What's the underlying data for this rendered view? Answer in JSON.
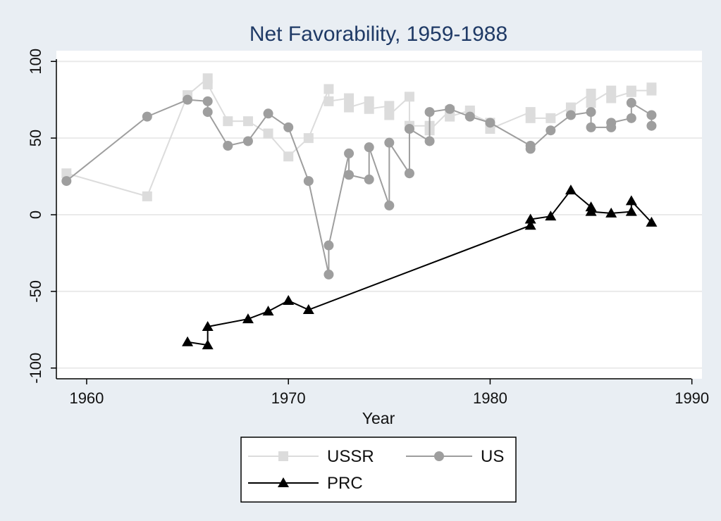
{
  "chart_data": {
    "type": "line",
    "title": "Net Favorability, 1959-1988",
    "xlabel": "Year",
    "ylabel": "",
    "xlim": [
      1958.5,
      1990.5
    ],
    "ylim": [
      -107,
      107
    ],
    "xticks": [
      1960,
      1970,
      1980,
      1990
    ],
    "yticks": [
      100,
      50,
      0,
      -50,
      -100
    ],
    "grid": true,
    "legend_position": "bottom",
    "series": [
      {
        "name": "USSR",
        "color": "#dcdcdc",
        "marker": "square",
        "x": [
          1959,
          1963,
          1965,
          1966,
          1966,
          1967,
          1968,
          1969,
          1970,
          1971,
          1972,
          1972,
          1973,
          1973,
          1974,
          1974,
          1975,
          1975,
          1976,
          1976,
          1977,
          1977,
          1978,
          1978,
          1979,
          1979,
          1980,
          1980,
          1982,
          1982,
          1983,
          1984,
          1985,
          1985,
          1986,
          1986,
          1987,
          1987,
          1988,
          1988
        ],
        "y": [
          27,
          12,
          78,
          89,
          85,
          61,
          61,
          53,
          38,
          50,
          82,
          74,
          76,
          70,
          74,
          69,
          71,
          65,
          77,
          58,
          58,
          55,
          68,
          64,
          68,
          66,
          60,
          56,
          67,
          63,
          63,
          70,
          79,
          73,
          81,
          76,
          80,
          81,
          81,
          83
        ]
      },
      {
        "name": "US",
        "color": "#9e9e9e",
        "marker": "circle",
        "x": [
          1959,
          1963,
          1965,
          1966,
          1966,
          1967,
          1968,
          1969,
          1970,
          1971,
          1972,
          1972,
          1973,
          1973,
          1974,
          1974,
          1975,
          1975,
          1976,
          1976,
          1977,
          1977,
          1978,
          1979,
          1980,
          1982,
          1982,
          1983,
          1984,
          1985,
          1985,
          1986,
          1986,
          1987,
          1987,
          1988,
          1988
        ],
        "y": [
          22,
          64,
          75,
          74,
          67,
          45,
          48,
          66,
          57,
          22,
          -39,
          -20,
          40,
          26,
          23,
          44,
          6,
          47,
          27,
          56,
          48,
          67,
          69,
          64,
          60,
          45,
          43,
          55,
          65,
          67,
          57,
          57,
          60,
          63,
          73,
          65,
          58
        ]
      },
      {
        "name": "PRC",
        "color": "#000000",
        "marker": "triangle",
        "x": [
          1965,
          1966,
          1966,
          1968,
          1969,
          1970,
          1971,
          1982,
          1982,
          1983,
          1984,
          1985,
          1985,
          1986,
          1987,
          1987,
          1988
        ],
        "y": [
          -83,
          -85,
          -73,
          -68,
          -63,
          -56,
          -62,
          -7,
          -3,
          -1,
          16,
          5,
          2,
          1,
          2,
          9,
          -5
        ]
      }
    ]
  }
}
